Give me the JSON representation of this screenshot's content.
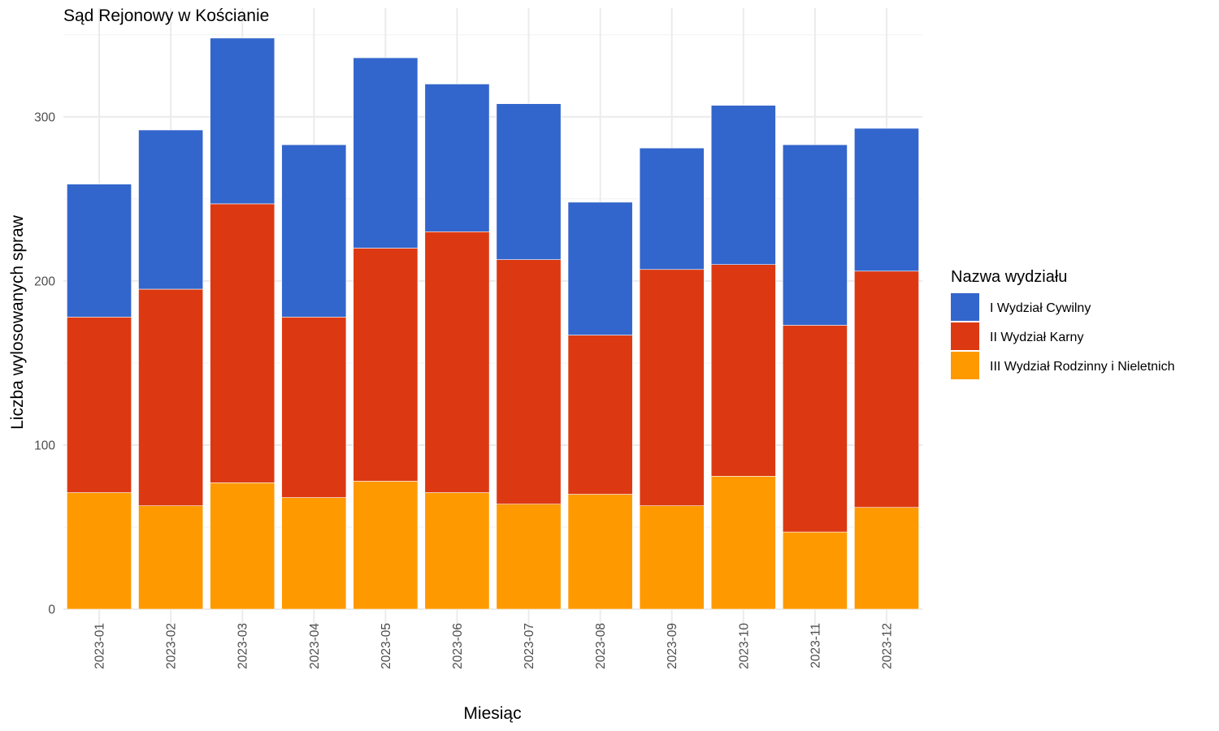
{
  "chart_data": {
    "type": "bar",
    "stacked": true,
    "title": "Sąd Rejonowy w Kościanie",
    "xlabel": "Miesiąc",
    "ylabel": "Liczba wylosowanych spraw",
    "ylim": [
      0,
      350
    ],
    "yticks": [
      0,
      100,
      200,
      300
    ],
    "grid": true,
    "legend": {
      "title": "Nazwa wydziału",
      "position": "right"
    },
    "categories": [
      "2023-01",
      "2023-02",
      "2023-03",
      "2023-04",
      "2023-05",
      "2023-06",
      "2023-07",
      "2023-08",
      "2023-09",
      "2023-10",
      "2023-11",
      "2023-12"
    ],
    "series": [
      {
        "name": "III Wydział Rodzinny i Nieletnich",
        "color": "#ff9900",
        "values": [
          71,
          63,
          77,
          68,
          78,
          71,
          64,
          70,
          63,
          81,
          47,
          62
        ]
      },
      {
        "name": "II Wydział Karny",
        "color": "#dc3912",
        "values": [
          107,
          132,
          170,
          110,
          142,
          159,
          149,
          97,
          144,
          129,
          126,
          144
        ]
      },
      {
        "name": "I Wydział Cywilny",
        "color": "#3366cc",
        "values": [
          81,
          97,
          101,
          105,
          116,
          90,
          95,
          81,
          74,
          97,
          110,
          87
        ]
      }
    ],
    "legend_order": [
      "I Wydział Cywilny",
      "II Wydział Karny",
      "III Wydział Rodzinny i Nieletnich"
    ]
  }
}
